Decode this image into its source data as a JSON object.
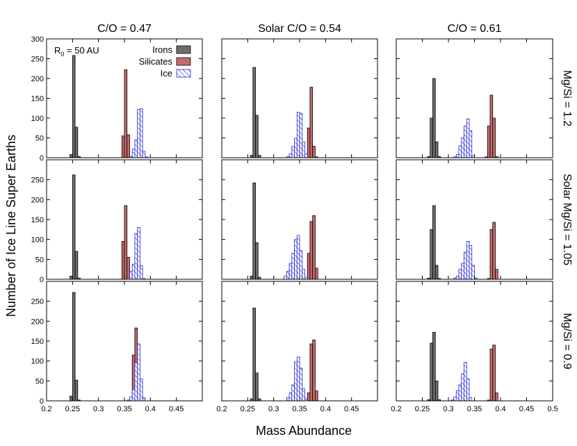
{
  "figure": {
    "ylabel": "Number of Ice Line Super Earths",
    "xlabel": "Mass Abundance",
    "annotation_prefix": "R",
    "annotation_sub": "0",
    "annotation_suffix": " = 50 AU"
  },
  "legend": [
    "Irons",
    "Silicates",
    "Ice"
  ],
  "colors": {
    "irons": "#6e6e6e",
    "silicates": "#c46a6a",
    "ice": "#1f1fd6",
    "ice_fill": "#ffffff"
  },
  "chart_data": {
    "type": "bar",
    "subtype": "histogram-grid",
    "columns": [
      "C/O = 0.47",
      "Solar C/O = 0.54",
      "C/O = 0.61"
    ],
    "rows": [
      "Mg/Si = 1.2",
      "Solar Mg/Si = 1.05",
      "Mg/Si = 0.9"
    ],
    "bin_width": 0.005,
    "xlim": [
      0.2,
      0.5
    ],
    "ylim": [
      0,
      300
    ],
    "xticks": [
      0.2,
      0.25,
      0.3,
      0.35,
      0.4,
      0.45,
      0.5
    ],
    "yticks": [
      0,
      50,
      100,
      150,
      200,
      250,
      300
    ],
    "grid": false,
    "legend_position": "top-right of first panel",
    "panels": [
      {
        "row": 0,
        "col": 0,
        "irons": [
          [
            0.2475,
            8
          ],
          [
            0.2525,
            258
          ],
          [
            0.2575,
            77
          ],
          [
            0.2625,
            3
          ]
        ],
        "silicates": [
          [
            0.3475,
            55
          ],
          [
            0.3525,
            222
          ],
          [
            0.3575,
            58
          ],
          [
            0.3625,
            3
          ]
        ],
        "ice": [
          [
            0.3625,
            3
          ],
          [
            0.3675,
            22
          ],
          [
            0.3725,
            45
          ],
          [
            0.3775,
            122
          ],
          [
            0.3825,
            124
          ],
          [
            0.3875,
            16
          ],
          [
            0.3925,
            2
          ]
        ]
      },
      {
        "row": 0,
        "col": 1,
        "irons": [
          [
            0.2575,
            6
          ],
          [
            0.2625,
            228
          ],
          [
            0.2675,
            107
          ],
          [
            0.2725,
            6
          ]
        ],
        "silicates": [
          [
            0.3675,
            75
          ],
          [
            0.3725,
            178
          ],
          [
            0.3775,
            29
          ],
          [
            0.3825,
            2
          ]
        ],
        "ice": [
          [
            0.3275,
            3
          ],
          [
            0.3325,
            10
          ],
          [
            0.3375,
            28
          ],
          [
            0.3425,
            49
          ],
          [
            0.3475,
            115
          ],
          [
            0.3525,
            112
          ],
          [
            0.3575,
            40
          ],
          [
            0.3625,
            10
          ]
        ]
      },
      {
        "row": 0,
        "col": 2,
        "irons": [
          [
            0.2625,
            3
          ],
          [
            0.2675,
            100
          ],
          [
            0.2725,
            200
          ],
          [
            0.2775,
            40
          ],
          [
            0.2825,
            3
          ]
        ],
        "silicates": [
          [
            0.3725,
            2
          ],
          [
            0.3775,
            80
          ],
          [
            0.3825,
            158
          ],
          [
            0.3875,
            100
          ],
          [
            0.3925,
            3
          ]
        ],
        "ice": [
          [
            0.3125,
            2
          ],
          [
            0.3175,
            8
          ],
          [
            0.3225,
            30
          ],
          [
            0.3275,
            50
          ],
          [
            0.3325,
            80
          ],
          [
            0.3375,
            98
          ],
          [
            0.3425,
            68
          ],
          [
            0.3475,
            5
          ]
        ]
      },
      {
        "row": 1,
        "col": 0,
        "irons": [
          [
            0.2475,
            8
          ],
          [
            0.2525,
            262
          ],
          [
            0.2575,
            70
          ],
          [
            0.2625,
            3
          ]
        ],
        "silicates": [
          [
            0.3475,
            95
          ],
          [
            0.3525,
            185
          ],
          [
            0.3575,
            55
          ],
          [
            0.3625,
            3
          ]
        ],
        "ice": [
          [
            0.3575,
            3
          ],
          [
            0.3625,
            20
          ],
          [
            0.3675,
            38
          ],
          [
            0.3725,
            115
          ],
          [
            0.3775,
            130
          ],
          [
            0.3825,
            34
          ],
          [
            0.3875,
            2
          ]
        ]
      },
      {
        "row": 1,
        "col": 1,
        "irons": [
          [
            0.2575,
            8
          ],
          [
            0.2625,
            242
          ],
          [
            0.2675,
            92
          ],
          [
            0.2725,
            5
          ]
        ],
        "silicates": [
          [
            0.3675,
            65
          ],
          [
            0.3725,
            145
          ],
          [
            0.3775,
            160
          ],
          [
            0.3825,
            28
          ]
        ],
        "ice": [
          [
            0.3225,
            8
          ],
          [
            0.3275,
            20
          ],
          [
            0.3325,
            40
          ],
          [
            0.3375,
            65
          ],
          [
            0.3425,
            100
          ],
          [
            0.3475,
            110
          ],
          [
            0.3525,
            72
          ],
          [
            0.3575,
            25
          ],
          [
            0.3625,
            5
          ]
        ]
      },
      {
        "row": 1,
        "col": 2,
        "irons": [
          [
            0.2625,
            3
          ],
          [
            0.2675,
            125
          ],
          [
            0.2725,
            185
          ],
          [
            0.2775,
            35
          ],
          [
            0.2825,
            2
          ]
        ],
        "silicates": [
          [
            0.3775,
            2
          ],
          [
            0.3825,
            125
          ],
          [
            0.3875,
            143
          ],
          [
            0.3925,
            25
          ]
        ],
        "ice": [
          [
            0.3125,
            3
          ],
          [
            0.3175,
            8
          ],
          [
            0.3225,
            25
          ],
          [
            0.3275,
            40
          ],
          [
            0.3325,
            68
          ],
          [
            0.3375,
            95
          ],
          [
            0.3425,
            85
          ],
          [
            0.3475,
            35
          ],
          [
            0.3525,
            3
          ]
        ]
      },
      {
        "row": 2,
        "col": 0,
        "irons": [
          [
            0.2475,
            12
          ],
          [
            0.2525,
            272
          ],
          [
            0.2575,
            52
          ],
          [
            0.2625,
            2
          ]
        ],
        "silicates": [
          [
            0.3675,
            115
          ],
          [
            0.3725,
            183
          ],
          [
            0.3775,
            32
          ],
          [
            0.3825,
            2
          ]
        ],
        "ice": [
          [
            0.3575,
            2
          ],
          [
            0.3625,
            10
          ],
          [
            0.3675,
            28
          ],
          [
            0.3725,
            95
          ],
          [
            0.3775,
            143
          ],
          [
            0.3825,
            55
          ],
          [
            0.3875,
            8
          ]
        ]
      },
      {
        "row": 2,
        "col": 1,
        "irons": [
          [
            0.2575,
            5
          ],
          [
            0.2625,
            233
          ],
          [
            0.2675,
            70
          ],
          [
            0.2725,
            5
          ]
        ],
        "silicates": [
          [
            0.3675,
            20
          ],
          [
            0.3725,
            143
          ],
          [
            0.3775,
            153
          ],
          [
            0.3825,
            25
          ]
        ],
        "ice": [
          [
            0.3275,
            8
          ],
          [
            0.3325,
            20
          ],
          [
            0.3375,
            40
          ],
          [
            0.3425,
            98
          ],
          [
            0.3475,
            110
          ],
          [
            0.3525,
            82
          ],
          [
            0.3575,
            30
          ],
          [
            0.3625,
            5
          ]
        ]
      },
      {
        "row": 2,
        "col": 2,
        "irons": [
          [
            0.2625,
            3
          ],
          [
            0.2675,
            145
          ],
          [
            0.2725,
            172
          ],
          [
            0.2775,
            50
          ],
          [
            0.2825,
            3
          ]
        ],
        "silicates": [
          [
            0.3775,
            2
          ],
          [
            0.3825,
            130
          ],
          [
            0.3875,
            140
          ],
          [
            0.3925,
            20
          ]
        ],
        "ice": [
          [
            0.3075,
            2
          ],
          [
            0.3125,
            10
          ],
          [
            0.3175,
            25
          ],
          [
            0.3225,
            40
          ],
          [
            0.3275,
            68
          ],
          [
            0.3325,
            97
          ],
          [
            0.3375,
            55
          ],
          [
            0.3425,
            8
          ]
        ]
      }
    ]
  }
}
